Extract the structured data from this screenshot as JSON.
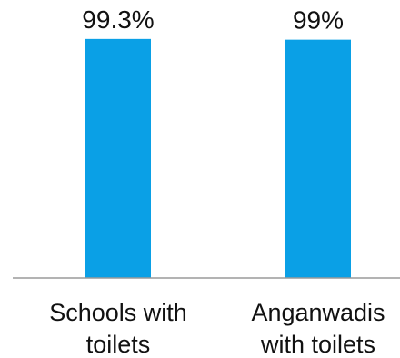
{
  "chart_data": {
    "type": "bar",
    "categories": [
      [
        "Schools with",
        "toilets"
      ],
      [
        "Anganwadis",
        "with toilets"
      ]
    ],
    "values": [
      99.3,
      99
    ],
    "data_labels": [
      "99.3%",
      "99%"
    ],
    "title": "",
    "xlabel": "",
    "ylabel": "",
    "ylim": [
      0,
      100
    ],
    "grid": false,
    "legend": "none",
    "bar_color": "#0aa0e6",
    "axis_color": "#9a9a9a",
    "text_color": "#111111"
  }
}
